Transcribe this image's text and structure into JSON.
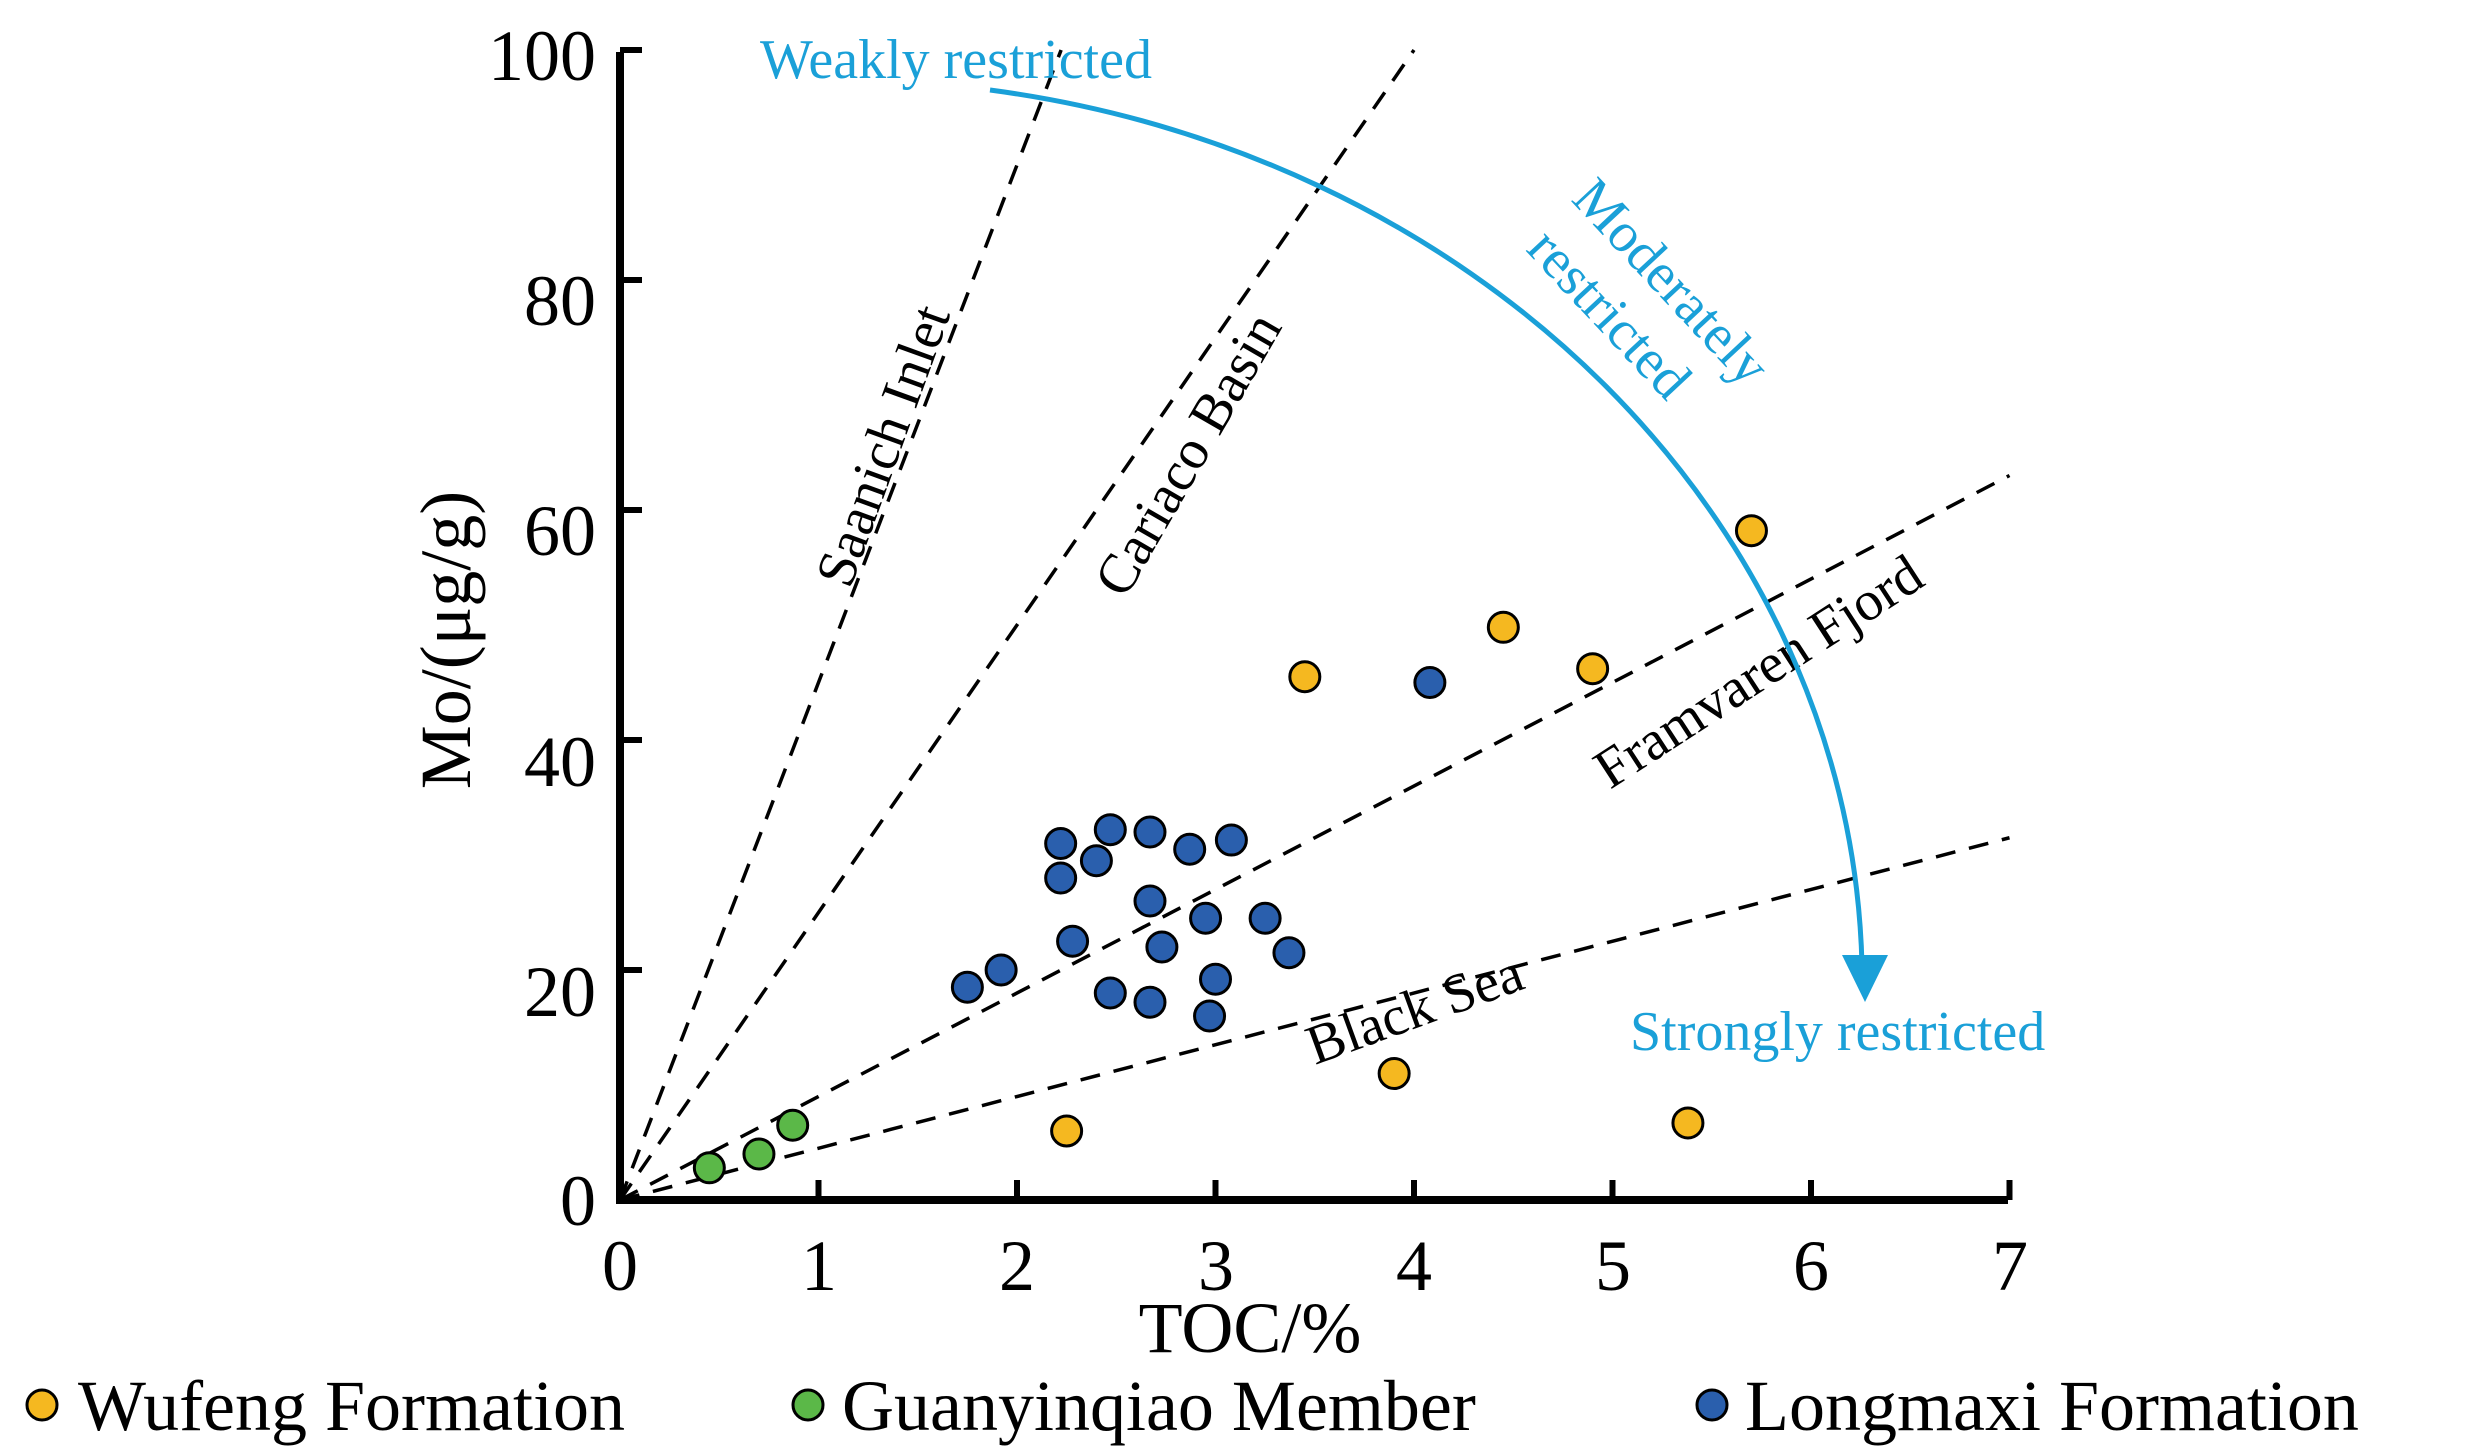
{
  "chart_data": {
    "type": "scatter",
    "title": "",
    "xlabel": "TOC/%",
    "ylabel": "Mo/(μg/g)",
    "xlim": [
      0,
      7
    ],
    "ylim": [
      0,
      100
    ],
    "xticks": [
      0,
      1,
      2,
      3,
      4,
      5,
      6,
      7
    ],
    "yticks": [
      0,
      20,
      40,
      60,
      80,
      100
    ],
    "xtick_labels": [
      "0",
      "1",
      "2",
      "3",
      "4",
      "5",
      "6",
      "7"
    ],
    "ytick_labels": [
      "0",
      "20",
      "40",
      "60",
      "80",
      "100"
    ],
    "grid": false,
    "legend_position": "bottom",
    "series": [
      {
        "name": "Wufeng Formation",
        "color": "#F5B820",
        "points": [
          [
            2.25,
            6
          ],
          [
            3.45,
            45.5
          ],
          [
            3.9,
            11
          ],
          [
            4.45,
            49.8
          ],
          [
            4.9,
            46.2
          ],
          [
            5.38,
            6.7
          ],
          [
            5.7,
            58.2
          ]
        ]
      },
      {
        "name": "Guanyinqiao Member",
        "color": "#5BB848",
        "points": [
          [
            0.45,
            2.8
          ],
          [
            0.7,
            4
          ],
          [
            0.87,
            6.5
          ]
        ]
      },
      {
        "name": "Longmaxi Formation",
        "color": "#2A5FAD",
        "points": [
          [
            1.75,
            18.5
          ],
          [
            1.92,
            20
          ],
          [
            2.22,
            31
          ],
          [
            2.22,
            28
          ],
          [
            2.28,
            22.5
          ],
          [
            2.4,
            29.5
          ],
          [
            2.47,
            32.2
          ],
          [
            2.47,
            18
          ],
          [
            2.67,
            32
          ],
          [
            2.67,
            26
          ],
          [
            2.67,
            17.2
          ],
          [
            2.73,
            22
          ],
          [
            2.87,
            30.5
          ],
          [
            2.95,
            24.5
          ],
          [
            2.97,
            16
          ],
          [
            3.0,
            19.2
          ],
          [
            3.08,
            31.3
          ],
          [
            3.25,
            24.5
          ],
          [
            3.37,
            21.5
          ],
          [
            4.08,
            45
          ]
        ]
      }
    ],
    "reference_lines": [
      {
        "name": "Saanich Inlet",
        "slope": 45
      },
      {
        "name": "Cariaco Basin",
        "slope": 25
      },
      {
        "name": "Framvaren Fjord",
        "slope": 9
      },
      {
        "name": "Black Sea",
        "slope": 4.5
      }
    ],
    "annotations": {
      "arrow_color": "#1AA0D8",
      "weakly": "Weakly restricted",
      "moderately_line1": "Moderately",
      "moderately_line2": "restricted",
      "strongly": "Strongly restricted"
    }
  }
}
